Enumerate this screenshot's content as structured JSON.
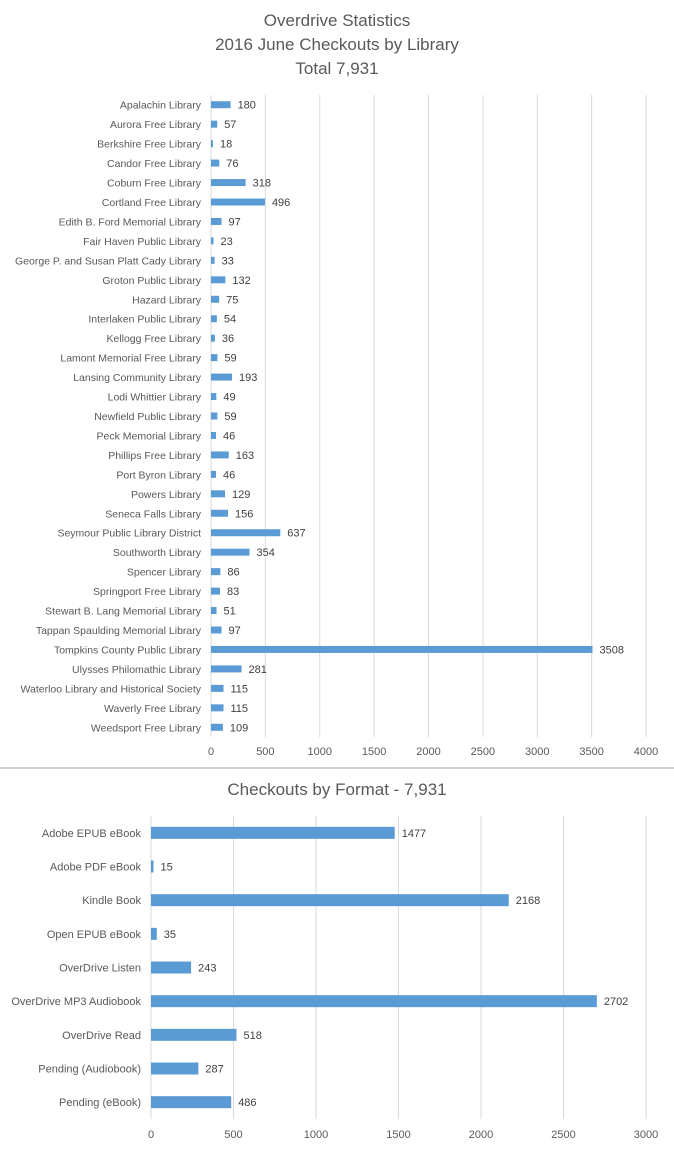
{
  "charts": [
    {
      "title_lines": [
        "Overdrive Statistics",
        "2016 June Checkouts by Library",
        "Total 7,931"
      ],
      "chart_data": {
        "type": "bar",
        "orientation": "horizontal",
        "title": "Overdrive Statistics 2016 June Checkouts by Library Total 7,931",
        "categories": [
          "Apalachin Library",
          "Aurora Free Library",
          "Berkshire Free Library",
          "Candor Free Library",
          "Coburn Free Library",
          "Cortland Free Library",
          "Edith B. Ford Memorial Library",
          "Fair Haven Public Library",
          "George P. and Susan Platt Cady Library",
          "Groton Public Library",
          "Hazard Library",
          "Interlaken Public Library",
          "Kellogg Free Library",
          "Lamont Memorial Free Library",
          "Lansing Community Library",
          "Lodi Whittier Library",
          "Newfield Public Library",
          "Peck Memorial Library",
          "Phillips Free Library",
          "Port Byron Library",
          "Powers Library",
          "Seneca Falls Library",
          "Seymour Public Library District",
          "Southworth Library",
          "Spencer Library",
          "Springport Free Library",
          "Stewart B. Lang Memorial Library",
          "Tappan Spaulding Memorial Library",
          "Tompkins County Public Library",
          "Ulysses Philomathic Library",
          "Waterloo Library and Historical Society",
          "Waverly Free Library",
          "Weedsport Free Library"
        ],
        "values": [
          180,
          57,
          18,
          76,
          318,
          496,
          97,
          23,
          33,
          132,
          75,
          54,
          36,
          59,
          193,
          49,
          59,
          46,
          163,
          46,
          129,
          156,
          637,
          354,
          86,
          83,
          51,
          97,
          3508,
          281,
          115,
          115,
          109
        ],
        "xlim": [
          0,
          4000
        ],
        "xticks": [
          "0",
          "500",
          "1000",
          "1500",
          "2000",
          "2500",
          "3000",
          "3500",
          "4000"
        ],
        "data_labels": true,
        "grid": "vertical",
        "bar_color": "#5b9bd5"
      }
    },
    {
      "title_lines": [
        "Checkouts by Format - 7,931"
      ],
      "chart_data": {
        "type": "bar",
        "orientation": "horizontal",
        "title": "Checkouts by Format - 7,931",
        "categories": [
          "Adobe EPUB eBook",
          "Adobe PDF eBook",
          "Kindle Book",
          "Open EPUB eBook",
          "OverDrive Listen",
          "OverDrive MP3 Audiobook",
          "OverDrive Read",
          "Pending (Audiobook)",
          "Pending (eBook)"
        ],
        "values": [
          1477,
          15,
          2168,
          35,
          243,
          2702,
          518,
          287,
          486
        ],
        "xlim": [
          0,
          3000
        ],
        "xticks": [
          "0",
          "500",
          "1000",
          "1500",
          "2000",
          "2500",
          "3000"
        ],
        "data_labels": true,
        "grid": "vertical",
        "bar_color": "#5b9bd5"
      }
    }
  ]
}
